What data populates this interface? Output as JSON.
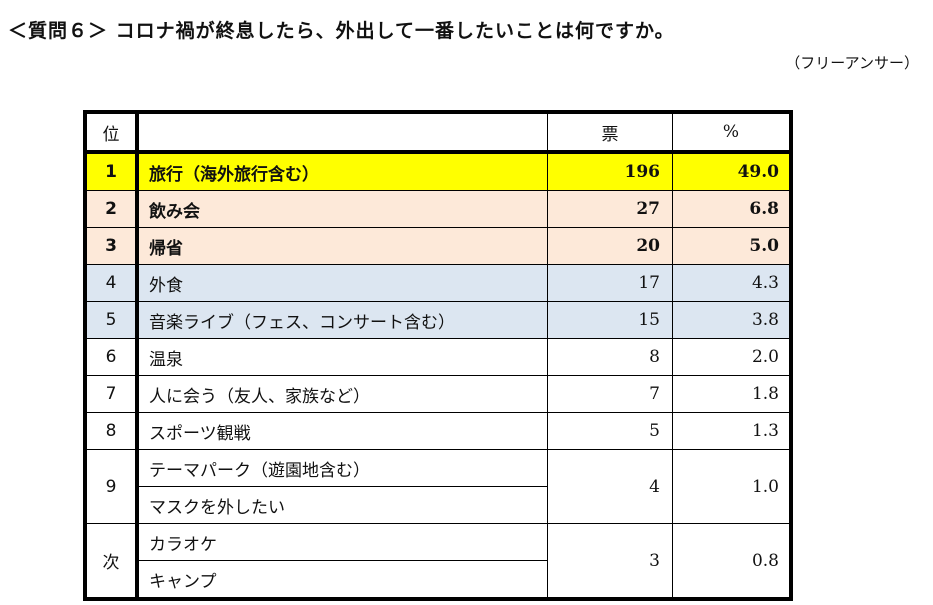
{
  "title": "＜質問６＞ コロナ禍が終息したら、外出して一番したいことは何ですか。",
  "subtitle": "（フリーアンサー）",
  "headers": {
    "rank": "位",
    "item": "",
    "votes": "票",
    "pct": "%"
  },
  "colors": {
    "top": "#ffff00",
    "second": "#fde9d9",
    "third": "#dce6f1"
  },
  "rows": [
    {
      "rank": "1",
      "item": "旅行（海外旅行含む）",
      "votes": "196",
      "pct": "49.0"
    },
    {
      "rank": "2",
      "item": "飲み会",
      "votes": "27",
      "pct": "6.8"
    },
    {
      "rank": "3",
      "item": "帰省",
      "votes": "20",
      "pct": "5.0"
    },
    {
      "rank": "4",
      "item": "外食",
      "votes": "17",
      "pct": "4.3"
    },
    {
      "rank": "5",
      "item": "音楽ライブ（フェス、コンサート含む）",
      "votes": "15",
      "pct": "3.8"
    },
    {
      "rank": "6",
      "item": "温泉",
      "votes": "8",
      "pct": "2.0"
    },
    {
      "rank": "7",
      "item": "人に会う（友人、家族など）",
      "votes": "7",
      "pct": "1.8"
    },
    {
      "rank": "8",
      "item": "スポーツ観戦",
      "votes": "5",
      "pct": "1.3"
    }
  ],
  "groups": [
    {
      "rank": "9",
      "items": [
        "テーマパーク（遊園地含む）",
        "マスクを外したい"
      ],
      "votes": "4",
      "pct": "1.0"
    },
    {
      "rank": "次",
      "items": [
        "カラオケ",
        "キャンプ"
      ],
      "votes": "3",
      "pct": "0.8"
    }
  ]
}
